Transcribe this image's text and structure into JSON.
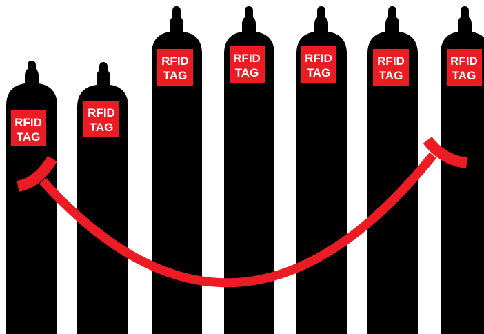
{
  "colors": {
    "cylinder": "#000000",
    "tag": "#ed1c24",
    "tag_text": "#ffffff",
    "arrow": "#ed1c24",
    "background": "#ffffff"
  },
  "tag": {
    "line1": "RFID",
    "line2": "TAG"
  },
  "cylinders": [
    {
      "id": "cylinder-1",
      "tag_line1": "RFID",
      "tag_line2": "TAG"
    },
    {
      "id": "cylinder-2",
      "tag_line1": "RFID",
      "tag_line2": "TAG"
    },
    {
      "id": "cylinder-3",
      "tag_line1": "RFID",
      "tag_line2": "TAG"
    },
    {
      "id": "cylinder-4",
      "tag_line1": "RFID",
      "tag_line2": "TAG"
    },
    {
      "id": "cylinder-5",
      "tag_line1": "RFID",
      "tag_line2": "TAG"
    },
    {
      "id": "cylinder-6",
      "tag_line1": "RFID",
      "tag_line2": "TAG"
    },
    {
      "id": "cylinder-7",
      "tag_line1": "RFID",
      "tag_line2": "TAG"
    }
  ],
  "arrow": {
    "icon": "curved-double-arrow-icon"
  }
}
